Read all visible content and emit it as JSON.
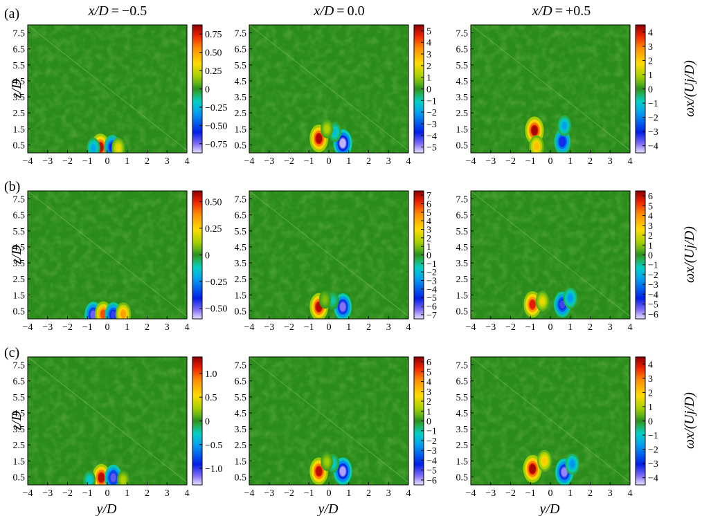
{
  "figure": {
    "columns": [
      {
        "var": "x/D",
        "rel": "=",
        "val": "−0.5"
      },
      {
        "var": "x/D",
        "rel": "=",
        "val": "0.0"
      },
      {
        "var": "x/D",
        "rel": "=",
        "val": "+0.5"
      }
    ],
    "row_labels": [
      "(a)",
      "(b)",
      "(c)"
    ],
    "xlabel": "y/D",
    "ylabel": "z/D",
    "colorbar_label": "ωx/(Uj/D)"
  },
  "chart_data": [
    {
      "type": "heatmap",
      "row": "(a)",
      "column": "x/D = −0.5",
      "xlabel": "",
      "ylabel": "z/D",
      "x_ticks": [
        "−4",
        "−3",
        "−2",
        "−1",
        "0",
        "1",
        "2",
        "3",
        "4"
      ],
      "y_ticks": [
        "0.5",
        "1.5",
        "2.5",
        "3.5",
        "4.5",
        "5.5",
        "6.5",
        "7.5"
      ],
      "xlim": [
        -4,
        4
      ],
      "ylim": [
        0,
        8
      ],
      "clim": [
        -0.875,
        0.875
      ],
      "colorbar_ticks": [
        {
          "v": 0.75,
          "t": "0.75"
        },
        {
          "v": 0.5,
          "t": "0.50"
        },
        {
          "v": 0.25,
          "t": "0.25"
        },
        {
          "v": 0,
          "t": "0"
        },
        {
          "v": -0.25,
          "t": "−0.25"
        },
        {
          "v": -0.5,
          "t": "−0.50"
        },
        {
          "v": -0.75,
          "t": "−0.75"
        }
      ],
      "features": [
        {
          "y": -0.35,
          "z": 0.35,
          "value": 0.8
        },
        {
          "y": 0.25,
          "z": 0.35,
          "value": -0.6
        },
        {
          "y": 0.55,
          "z": 0.3,
          "value": 0.3
        },
        {
          "y": -0.7,
          "z": 0.3,
          "value": -0.3
        }
      ]
    },
    {
      "type": "heatmap",
      "row": "(a)",
      "column": "x/D = 0.0",
      "xlabel": "",
      "ylabel": "",
      "x_ticks": [
        "−4",
        "−3",
        "−2",
        "−1",
        "0",
        "1",
        "2",
        "3",
        "4"
      ],
      "y_ticks": [
        "0.5",
        "1.5",
        "2.5",
        "3.5",
        "4.5",
        "5.5",
        "6.5",
        "7.5"
      ],
      "xlim": [
        -4,
        4
      ],
      "ylim": [
        0,
        8
      ],
      "clim": [
        -5.5,
        5.5
      ],
      "colorbar_ticks": [
        {
          "v": 5,
          "t": "5"
        },
        {
          "v": 4,
          "t": "4"
        },
        {
          "v": 3,
          "t": "3"
        },
        {
          "v": 2,
          "t": "2"
        },
        {
          "v": 1,
          "t": "1"
        },
        {
          "v": 0,
          "t": "0"
        },
        {
          "v": -1,
          "t": "−1"
        },
        {
          "v": -2,
          "t": "−2"
        },
        {
          "v": -3,
          "t": "−3"
        },
        {
          "v": -4,
          "t": "−4"
        },
        {
          "v": -5,
          "t": "−5"
        }
      ],
      "features": [
        {
          "y": -0.5,
          "z": 0.9,
          "value": 5.2
        },
        {
          "y": 0.7,
          "z": 0.6,
          "value": -5.2
        },
        {
          "y": 0.3,
          "z": 1.3,
          "value": -1.5
        },
        {
          "y": -0.1,
          "z": 1.5,
          "value": 1.2
        }
      ]
    },
    {
      "type": "heatmap",
      "row": "(a)",
      "column": "x/D = +0.5",
      "xlabel": "",
      "ylabel": "",
      "x_ticks": [
        "−4",
        "−3",
        "−2",
        "−1",
        "0",
        "1",
        "2",
        "3",
        "4"
      ],
      "y_ticks": [
        "0.5",
        "1.5",
        "2.5",
        "3.5",
        "4.5",
        "5.5",
        "6.5",
        "7.5"
      ],
      "xlim": [
        -4,
        4
      ],
      "ylim": [
        0,
        8
      ],
      "clim": [
        -4.5,
        4.5
      ],
      "colorbar_ticks": [
        {
          "v": 4,
          "t": "4"
        },
        {
          "v": 3,
          "t": "3"
        },
        {
          "v": 2,
          "t": "2"
        },
        {
          "v": 1,
          "t": "1"
        },
        {
          "v": 0,
          "t": "0"
        },
        {
          "v": -1,
          "t": "−1"
        },
        {
          "v": -2,
          "t": "−2"
        },
        {
          "v": -3,
          "t": "−3"
        },
        {
          "v": -4,
          "t": "−4"
        }
      ],
      "features": [
        {
          "y": -0.8,
          "z": 1.4,
          "value": 4.3
        },
        {
          "y": -0.7,
          "z": 0.4,
          "value": 2.2
        },
        {
          "y": 0.6,
          "z": 0.7,
          "value": -3.2
        },
        {
          "y": 0.7,
          "z": 1.7,
          "value": -1.6
        }
      ]
    },
    {
      "type": "heatmap",
      "row": "(b)",
      "column": "x/D = −0.5",
      "xlabel": "",
      "ylabel": "z/D",
      "x_ticks": [
        "−4",
        "−3",
        "−2",
        "−1",
        "0",
        "1",
        "2",
        "3",
        "4"
      ],
      "y_ticks": [
        "0.5",
        "1.5",
        "2.5",
        "3.5",
        "4.5",
        "5.5",
        "6.5",
        "7.5"
      ],
      "xlim": [
        -4,
        4
      ],
      "ylim": [
        0,
        8
      ],
      "clim": [
        -0.6,
        0.6
      ],
      "colorbar_ticks": [
        {
          "v": 0.5,
          "t": "0.50"
        },
        {
          "v": 0.25,
          "t": "0.25"
        },
        {
          "v": 0,
          "t": "0"
        },
        {
          "v": -0.25,
          "t": "−0.25"
        },
        {
          "v": -0.5,
          "t": "−0.50"
        }
      ],
      "features": [
        {
          "y": -0.7,
          "z": 0.25,
          "value": -0.5
        },
        {
          "y": -0.2,
          "z": 0.3,
          "value": 0.45
        },
        {
          "y": 0.3,
          "z": 0.25,
          "value": -0.45
        },
        {
          "y": 0.8,
          "z": 0.3,
          "value": 0.35
        }
      ]
    },
    {
      "type": "heatmap",
      "row": "(b)",
      "column": "x/D = 0.0",
      "xlabel": "",
      "ylabel": "",
      "x_ticks": [
        "−4",
        "−3",
        "−2",
        "−1",
        "0",
        "1",
        "2",
        "3",
        "4"
      ],
      "y_ticks": [
        "0.5",
        "1.5",
        "2.5",
        "3.5",
        "4.5",
        "5.5",
        "6.5",
        "7.5"
      ],
      "xlim": [
        -4,
        4
      ],
      "ylim": [
        0,
        8
      ],
      "clim": [
        -7.5,
        7.5
      ],
      "colorbar_ticks": [
        {
          "v": 7,
          "t": "7"
        },
        {
          "v": 6,
          "t": "6"
        },
        {
          "v": 5,
          "t": "5"
        },
        {
          "v": 4,
          "t": "4"
        },
        {
          "v": 3,
          "t": "3"
        },
        {
          "v": 2,
          "t": "2"
        },
        {
          "v": 1,
          "t": "1"
        },
        {
          "v": 0,
          "t": "0"
        },
        {
          "v": -1,
          "t": "−1"
        },
        {
          "v": -2,
          "t": "−2"
        },
        {
          "v": -3,
          "t": "−3"
        },
        {
          "v": -4,
          "t": "−4"
        },
        {
          "v": -5,
          "t": "−5"
        },
        {
          "v": -6,
          "t": "−6"
        },
        {
          "v": -7,
          "t": "−7"
        }
      ],
      "features": [
        {
          "y": -0.5,
          "z": 0.75,
          "value": 7.0
        },
        {
          "y": 0.7,
          "z": 0.75,
          "value": -6.5
        },
        {
          "y": 0.2,
          "z": 1.15,
          "value": -1.2
        },
        {
          "y": -0.2,
          "z": 1.2,
          "value": 1.0
        }
      ]
    },
    {
      "type": "heatmap",
      "row": "(b)",
      "column": "x/D = +0.5",
      "xlabel": "",
      "ylabel": "",
      "x_ticks": [
        "−4",
        "−3",
        "−2",
        "−1",
        "0",
        "1",
        "2",
        "3",
        "4"
      ],
      "y_ticks": [
        "0.5",
        "1.5",
        "2.5",
        "3.5",
        "4.5",
        "5.5",
        "6.5",
        "7.5"
      ],
      "xlim": [
        -4,
        4
      ],
      "ylim": [
        0,
        8
      ],
      "clim": [
        -6.5,
        6.5
      ],
      "colorbar_ticks": [
        {
          "v": 6,
          "t": "6"
        },
        {
          "v": 5,
          "t": "5"
        },
        {
          "v": 4,
          "t": "4"
        },
        {
          "v": 3,
          "t": "3"
        },
        {
          "v": 2,
          "t": "2"
        },
        {
          "v": 1,
          "t": "1"
        },
        {
          "v": 0,
          "t": "0"
        },
        {
          "v": -1,
          "t": "−1"
        },
        {
          "v": -2,
          "t": "−2"
        },
        {
          "v": -3,
          "t": "−3"
        },
        {
          "v": -4,
          "t": "−4"
        },
        {
          "v": -5,
          "t": "−5"
        },
        {
          "v": -6,
          "t": "−6"
        }
      ],
      "features": [
        {
          "y": -0.9,
          "z": 0.9,
          "value": 5.5
        },
        {
          "y": 0.6,
          "z": 0.9,
          "value": -5.0
        },
        {
          "y": 1.0,
          "z": 1.3,
          "value": -2.5
        },
        {
          "y": -0.4,
          "z": 1.1,
          "value": 2.2
        }
      ]
    },
    {
      "type": "heatmap",
      "row": "(c)",
      "column": "x/D = −0.5",
      "xlabel": "y/D",
      "ylabel": "z/D",
      "x_ticks": [
        "−4",
        "−3",
        "−2",
        "−1",
        "0",
        "1",
        "2",
        "3",
        "4"
      ],
      "y_ticks": [
        "0.5",
        "1.5",
        "2.5",
        "3.5",
        "4.5",
        "5.5",
        "6.5",
        "7.5"
      ],
      "xlim": [
        -4,
        4
      ],
      "ylim": [
        0,
        8
      ],
      "clim": [
        -1.35,
        1.35
      ],
      "colorbar_ticks": [
        {
          "v": 1.0,
          "t": "1.0"
        },
        {
          "v": 0.5,
          "t": "0.5"
        },
        {
          "v": 0,
          "t": "0"
        },
        {
          "v": -0.5,
          "t": "−0.5"
        },
        {
          "v": -1.0,
          "t": "−1.0"
        }
      ],
      "features": [
        {
          "y": -0.3,
          "z": 0.45,
          "value": 1.25
        },
        {
          "y": 0.3,
          "z": 0.45,
          "value": -1.1
        },
        {
          "y": 0.8,
          "z": 0.3,
          "value": 0.3
        },
        {
          "y": -0.9,
          "z": 0.3,
          "value": -0.3
        }
      ]
    },
    {
      "type": "heatmap",
      "row": "(c)",
      "column": "x/D = 0.0",
      "xlabel": "y/D",
      "ylabel": "",
      "x_ticks": [
        "−4",
        "−3",
        "−2",
        "−1",
        "0",
        "1",
        "2",
        "3",
        "4"
      ],
      "y_ticks": [
        "0.5",
        "1.5",
        "2.5",
        "3.5",
        "4.5",
        "5.5",
        "6.5",
        "7.5"
      ],
      "xlim": [
        -4,
        4
      ],
      "ylim": [
        0,
        8
      ],
      "clim": [
        -6.5,
        6.5
      ],
      "colorbar_ticks": [
        {
          "v": 6,
          "t": "6"
        },
        {
          "v": 5,
          "t": "5"
        },
        {
          "v": 4,
          "t": "4"
        },
        {
          "v": 3,
          "t": "3"
        },
        {
          "v": 2,
          "t": "2"
        },
        {
          "v": 1,
          "t": "1"
        },
        {
          "v": 0,
          "t": "0"
        },
        {
          "v": -1,
          "t": "−1"
        },
        {
          "v": -2,
          "t": "−2"
        },
        {
          "v": -3,
          "t": "−3"
        },
        {
          "v": -4,
          "t": "−4"
        },
        {
          "v": -5,
          "t": "−5"
        },
        {
          "v": -6,
          "t": "−6"
        }
      ],
      "features": [
        {
          "y": -0.5,
          "z": 0.85,
          "value": 6.0
        },
        {
          "y": 0.7,
          "z": 0.85,
          "value": -6.0
        },
        {
          "y": 0.2,
          "z": 1.35,
          "value": -1.5
        },
        {
          "y": -0.1,
          "z": 1.45,
          "value": 1.2
        }
      ]
    },
    {
      "type": "heatmap",
      "row": "(c)",
      "column": "x/D = +0.5",
      "xlabel": "y/D",
      "ylabel": "",
      "x_ticks": [
        "−4",
        "−3",
        "−2",
        "−1",
        "0",
        "1",
        "2",
        "3",
        "4"
      ],
      "y_ticks": [
        "0.5",
        "1.5",
        "2.5",
        "3.5",
        "4.5",
        "5.5",
        "6.5",
        "7.5"
      ],
      "xlim": [
        -4,
        4
      ],
      "ylim": [
        0,
        8
      ],
      "clim": [
        -4.5,
        4.5
      ],
      "colorbar_ticks": [
        {
          "v": 4,
          "t": "4"
        },
        {
          "v": 3,
          "t": "3"
        },
        {
          "v": 2,
          "t": "2"
        },
        {
          "v": 1,
          "t": "1"
        },
        {
          "v": 0,
          "t": "0"
        },
        {
          "v": -1,
          "t": "−1"
        },
        {
          "v": -2,
          "t": "−2"
        },
        {
          "v": -3,
          "t": "−3"
        },
        {
          "v": -4,
          "t": "−4"
        }
      ],
      "features": [
        {
          "y": -0.9,
          "z": 1.0,
          "value": 4.3
        },
        {
          "y": -0.3,
          "z": 1.5,
          "value": 2.0
        },
        {
          "y": 0.7,
          "z": 0.8,
          "value": -4.0
        },
        {
          "y": 1.1,
          "z": 1.3,
          "value": -1.8
        }
      ]
    }
  ]
}
